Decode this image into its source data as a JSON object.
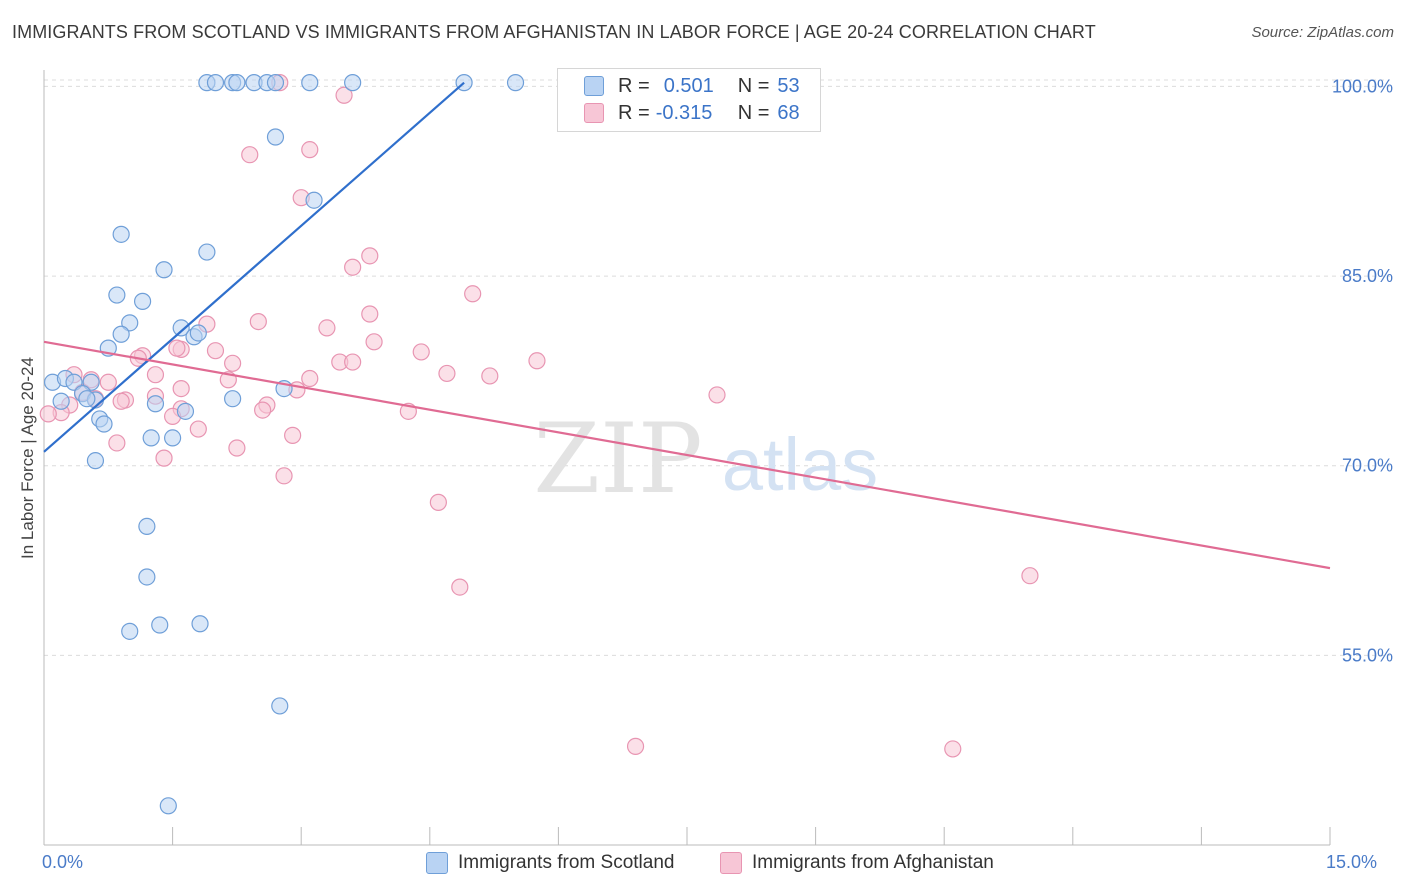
{
  "title": "IMMIGRANTS FROM SCOTLAND VS IMMIGRANTS FROM AFGHANISTAN IN LABOR FORCE | AGE 20-24 CORRELATION CHART",
  "source": "Source: ZipAtlas.com",
  "watermark": {
    "zip": "ZIP",
    "atlas": "atlas"
  },
  "legend": {
    "r_label": "R =",
    "n_label": "N =",
    "series": [
      {
        "name": "Immigrants from Scotland",
        "r": "0.501",
        "n": "53"
      },
      {
        "name": "Immigrants from Afghanistan",
        "r": "-0.315",
        "n": "68"
      }
    ]
  },
  "colors": {
    "blue_fill": "#b9d3f3",
    "blue_stroke": "#6f9fd8",
    "blue_line": "#2f6fcc",
    "pink_fill": "#f7c6d6",
    "pink_stroke": "#e895b2",
    "pink_line": "#e06b93",
    "grid": "#dcdcdc",
    "tick_text": "#4a7bc8"
  },
  "chart_data": {
    "type": "scatter",
    "title": "IMMIGRANTS FROM SCOTLAND VS IMMIGRANTS FROM AFGHANISTAN IN LABOR FORCE | AGE 20-24 CORRELATION CHART",
    "xlabel": "",
    "ylabel": "In Labor Force | Age 20-24",
    "xlim": [
      0,
      15
    ],
    "ylim": [
      40,
      101.3
    ],
    "x_tick_labels": [
      "0.0%",
      "15.0%"
    ],
    "y_ticks": [
      55,
      70,
      85,
      100
    ],
    "y_tick_labels": [
      "55.0%",
      "70.0%",
      "85.0%",
      "100.0%"
    ],
    "series": [
      {
        "name": "Immigrants from Scotland",
        "color": "blue",
        "trend": {
          "x0": 0.0,
          "y0": 71.1,
          "x1": 4.9,
          "y1": 100.3
        },
        "points": [
          [
            1.9,
            100.3
          ],
          [
            2.0,
            100.3
          ],
          [
            2.2,
            100.3
          ],
          [
            2.25,
            100.3
          ],
          [
            2.45,
            100.3
          ],
          [
            2.6,
            100.3
          ],
          [
            2.7,
            100.3
          ],
          [
            3.1,
            100.3
          ],
          [
            3.6,
            100.3
          ],
          [
            4.9,
            100.3
          ],
          [
            5.5,
            100.3
          ],
          [
            2.7,
            96.0
          ],
          [
            3.15,
            91.0
          ],
          [
            0.9,
            88.3
          ],
          [
            1.9,
            86.9
          ],
          [
            1.4,
            85.5
          ],
          [
            0.85,
            83.5
          ],
          [
            1.15,
            83.0
          ],
          [
            1.0,
            81.3
          ],
          [
            1.6,
            80.9
          ],
          [
            0.9,
            80.4
          ],
          [
            1.75,
            80.2
          ],
          [
            1.8,
            80.5
          ],
          [
            0.75,
            79.3
          ],
          [
            0.1,
            76.6
          ],
          [
            0.25,
            76.9
          ],
          [
            0.35,
            76.6
          ],
          [
            0.55,
            76.6
          ],
          [
            0.45,
            75.7
          ],
          [
            0.6,
            75.2
          ],
          [
            0.5,
            75.3
          ],
          [
            0.2,
            75.1
          ],
          [
            0.65,
            73.7
          ],
          [
            0.7,
            73.3
          ],
          [
            1.3,
            74.9
          ],
          [
            1.65,
            74.3
          ],
          [
            2.2,
            75.3
          ],
          [
            2.8,
            76.1
          ],
          [
            1.25,
            72.2
          ],
          [
            1.5,
            72.2
          ],
          [
            0.6,
            70.4
          ],
          [
            1.2,
            65.2
          ],
          [
            1.2,
            61.2
          ],
          [
            1.0,
            56.9
          ],
          [
            1.35,
            57.4
          ],
          [
            1.82,
            57.5
          ],
          [
            2.75,
            51.0
          ],
          [
            1.45,
            43.1
          ]
        ]
      },
      {
        "name": "Immigrants from Afghanistan",
        "color": "pink",
        "trend": {
          "x0": 0.0,
          "y0": 79.8,
          "x1": 15.0,
          "y1": 61.9
        },
        "points": [
          [
            2.75,
            100.3
          ],
          [
            3.5,
            99.3
          ],
          [
            2.4,
            94.6
          ],
          [
            3.1,
            95.0
          ],
          [
            3.0,
            91.2
          ],
          [
            3.6,
            85.7
          ],
          [
            3.8,
            86.6
          ],
          [
            5.0,
            83.6
          ],
          [
            2.5,
            81.4
          ],
          [
            3.3,
            80.9
          ],
          [
            1.9,
            81.2
          ],
          [
            3.8,
            82.0
          ],
          [
            3.85,
            79.8
          ],
          [
            2.0,
            79.1
          ],
          [
            1.6,
            79.2
          ],
          [
            1.55,
            79.3
          ],
          [
            1.15,
            78.7
          ],
          [
            1.1,
            78.5
          ],
          [
            2.2,
            78.1
          ],
          [
            3.45,
            78.2
          ],
          [
            3.6,
            78.2
          ],
          [
            4.4,
            79.0
          ],
          [
            4.7,
            77.3
          ],
          [
            5.2,
            77.1
          ],
          [
            5.75,
            78.3
          ],
          [
            7.85,
            75.6
          ],
          [
            1.3,
            77.2
          ],
          [
            1.6,
            76.1
          ],
          [
            2.15,
            76.8
          ],
          [
            3.1,
            76.9
          ],
          [
            2.95,
            76.0
          ],
          [
            0.35,
            77.2
          ],
          [
            0.55,
            76.8
          ],
          [
            0.75,
            76.6
          ],
          [
            0.45,
            75.8
          ],
          [
            0.6,
            75.3
          ],
          [
            0.3,
            74.8
          ],
          [
            0.95,
            75.2
          ],
          [
            0.9,
            75.1
          ],
          [
            1.3,
            75.5
          ],
          [
            1.6,
            74.5
          ],
          [
            2.6,
            74.8
          ],
          [
            2.55,
            74.4
          ],
          [
            4.25,
            74.3
          ],
          [
            1.5,
            73.9
          ],
          [
            1.8,
            72.9
          ],
          [
            2.9,
            72.4
          ],
          [
            0.2,
            74.2
          ],
          [
            0.05,
            74.1
          ],
          [
            0.85,
            71.8
          ],
          [
            1.4,
            70.6
          ],
          [
            2.25,
            71.4
          ],
          [
            2.8,
            69.2
          ],
          [
            4.6,
            67.1
          ],
          [
            4.85,
            60.4
          ],
          [
            11.5,
            61.3
          ],
          [
            6.9,
            47.8
          ],
          [
            10.6,
            47.6
          ]
        ]
      }
    ]
  }
}
